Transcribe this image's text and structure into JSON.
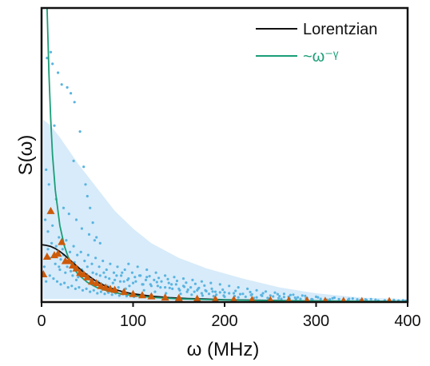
{
  "chart_data": {
    "type": "scatter",
    "title": "",
    "xlabel": "ω (MHz)",
    "ylabel": "S(ω)",
    "xlim": [
      0,
      400
    ],
    "ylim": [
      0,
      1
    ],
    "xticks": [
      0,
      100,
      200,
      300,
      400
    ],
    "yticks_labeled": false,
    "grid": false,
    "legend": {
      "placement": "top-right",
      "entries": [
        "Lorentzian",
        "~ω⁻ᵞ"
      ]
    },
    "colors": {
      "lorentzian": "#111111",
      "power_law": "#1a9e77",
      "band": "#d7ebfa",
      "samples": "#5ab4e0",
      "measured": "#cc5a0a"
    },
    "band": {
      "x": [
        2,
        10,
        20,
        40,
        60,
        80,
        100,
        120,
        150,
        180,
        220,
        260,
        300,
        350,
        400
      ],
      "lower": [
        0.01,
        0.01,
        0.01,
        0.01,
        0.01,
        0.01,
        0.008,
        0.006,
        0.005,
        0.004,
        0.003,
        0.002,
        0.002,
        0.001,
        0.001
      ],
      "upper": [
        0.62,
        0.6,
        0.56,
        0.47,
        0.39,
        0.31,
        0.25,
        0.2,
        0.15,
        0.115,
        0.08,
        0.05,
        0.03,
        0.015,
        0.01
      ]
    },
    "series": [
      {
        "name": "Lorentzian",
        "kind": "line",
        "x": [
          0,
          5,
          10,
          15,
          20,
          25,
          30,
          35,
          40,
          45,
          50,
          55,
          60,
          70,
          80,
          90,
          100,
          120,
          140,
          160,
          180,
          200,
          240,
          280,
          320,
          360,
          400
        ],
        "y": [
          0.195,
          0.193,
          0.189,
          0.182,
          0.172,
          0.16,
          0.146,
          0.132,
          0.118,
          0.104,
          0.092,
          0.081,
          0.07,
          0.054,
          0.043,
          0.034,
          0.028,
          0.02,
          0.015,
          0.012,
          0.01,
          0.008,
          0.006,
          0.004,
          0.003,
          0.002,
          0.002
        ]
      },
      {
        "name": "~ω⁻ᵞ",
        "kind": "line",
        "x": [
          6,
          8,
          10,
          12,
          15,
          20,
          25,
          30,
          35,
          40,
          50,
          60,
          70,
          80,
          100,
          120,
          150,
          200,
          250,
          300,
          350,
          400
        ],
        "y": [
          1.0,
          0.78,
          0.62,
          0.5,
          0.38,
          0.26,
          0.19,
          0.145,
          0.115,
          0.094,
          0.067,
          0.05,
          0.04,
          0.032,
          0.022,
          0.016,
          0.011,
          0.007,
          0.005,
          0.004,
          0.003,
          0.002
        ]
      },
      {
        "kind": "measured",
        "marker": "triangle",
        "x": [
          2,
          6,
          10,
          14,
          18,
          22,
          26,
          30,
          34,
          38,
          42,
          46,
          50,
          55,
          60,
          65,
          70,
          75,
          80,
          90,
          100,
          110,
          120,
          135,
          150,
          170,
          190,
          210,
          230,
          250,
          270,
          290,
          310,
          330,
          350,
          380
        ],
        "y": [
          0.095,
          0.155,
          0.31,
          0.16,
          0.165,
          0.205,
          0.14,
          0.14,
          0.125,
          0.115,
          0.1,
          0.095,
          0.085,
          0.07,
          0.065,
          0.055,
          0.05,
          0.045,
          0.042,
          0.035,
          0.028,
          0.024,
          0.02,
          0.016,
          0.014,
          0.012,
          0.01,
          0.009,
          0.008,
          0.007,
          0.006,
          0.006,
          0.005,
          0.005,
          0.004,
          0.004
        ]
      },
      {
        "kind": "samples",
        "marker": "dot",
        "points": [
          [
            6,
            0.83
          ],
          [
            10,
            0.85
          ],
          [
            12,
            0.81
          ],
          [
            18,
            0.78
          ],
          [
            22,
            0.74
          ],
          [
            28,
            0.73
          ],
          [
            32,
            0.71
          ],
          [
            36,
            0.68
          ],
          [
            42,
            0.58
          ],
          [
            14,
            0.6
          ],
          [
            35,
            0.48
          ],
          [
            46,
            0.46
          ],
          [
            48,
            0.4
          ],
          [
            50,
            0.36
          ],
          [
            53,
            0.32
          ],
          [
            56,
            0.27
          ],
          [
            60,
            0.22
          ],
          [
            5,
            0.45
          ],
          [
            8,
            0.4
          ],
          [
            16,
            0.35
          ],
          [
            24,
            0.32
          ],
          [
            30,
            0.3
          ],
          [
            38,
            0.28
          ],
          [
            44,
            0.25
          ],
          [
            52,
            0.23
          ],
          [
            58,
            0.21
          ],
          [
            64,
            0.2
          ],
          [
            4,
            0.28
          ],
          [
            7,
            0.24
          ],
          [
            11,
            0.2
          ],
          [
            19,
            0.22
          ],
          [
            23,
            0.18
          ],
          [
            27,
            0.21
          ],
          [
            31,
            0.17
          ],
          [
            35,
            0.19
          ],
          [
            39,
            0.16
          ],
          [
            43,
            0.17
          ],
          [
            47,
            0.14
          ],
          [
            51,
            0.16
          ],
          [
            55,
            0.13
          ],
          [
            59,
            0.15
          ],
          [
            63,
            0.12
          ],
          [
            67,
            0.14
          ],
          [
            71,
            0.11
          ],
          [
            75,
            0.13
          ],
          [
            79,
            0.1
          ],
          [
            83,
            0.12
          ],
          [
            87,
            0.09
          ],
          [
            91,
            0.11
          ],
          [
            95,
            0.08
          ],
          [
            99,
            0.1
          ],
          [
            103,
            0.07
          ],
          [
            107,
            0.09
          ],
          [
            111,
            0.06
          ],
          [
            115,
            0.085
          ],
          [
            119,
            0.06
          ],
          [
            123,
            0.075
          ],
          [
            127,
            0.055
          ],
          [
            131,
            0.07
          ],
          [
            135,
            0.05
          ],
          [
            139,
            0.065
          ],
          [
            143,
            0.045
          ],
          [
            147,
            0.06
          ],
          [
            151,
            0.04
          ],
          [
            155,
            0.055
          ],
          [
            159,
            0.035
          ],
          [
            163,
            0.05
          ],
          [
            167,
            0.035
          ],
          [
            171,
            0.045
          ],
          [
            175,
            0.03
          ],
          [
            179,
            0.04
          ],
          [
            183,
            0.028
          ],
          [
            187,
            0.036
          ],
          [
            191,
            0.025
          ],
          [
            195,
            0.033
          ],
          [
            199,
            0.022
          ],
          [
            205,
            0.03
          ],
          [
            211,
            0.02
          ],
          [
            217,
            0.027
          ],
          [
            223,
            0.018
          ],
          [
            229,
            0.024
          ],
          [
            235,
            0.016
          ],
          [
            241,
            0.021
          ],
          [
            247,
            0.014
          ],
          [
            253,
            0.019
          ],
          [
            259,
            0.013
          ],
          [
            265,
            0.017
          ],
          [
            271,
            0.012
          ],
          [
            277,
            0.015
          ],
          [
            283,
            0.011
          ],
          [
            289,
            0.013
          ],
          [
            295,
            0.01
          ],
          [
            305,
            0.011
          ],
          [
            315,
            0.009
          ],
          [
            325,
            0.01
          ],
          [
            335,
            0.008
          ],
          [
            345,
            0.009
          ],
          [
            355,
            0.007
          ],
          [
            365,
            0.008
          ],
          [
            375,
            0.006
          ],
          [
            385,
            0.007
          ],
          [
            395,
            0.006
          ],
          [
            3,
            0.12
          ],
          [
            9,
            0.09
          ],
          [
            13,
            0.08
          ],
          [
            17,
            0.07
          ],
          [
            21,
            0.06
          ],
          [
            25,
            0.065
          ],
          [
            29,
            0.05
          ],
          [
            33,
            0.055
          ],
          [
            37,
            0.045
          ],
          [
            41,
            0.05
          ],
          [
            45,
            0.04
          ],
          [
            49,
            0.045
          ],
          [
            53,
            0.035
          ],
          [
            57,
            0.04
          ],
          [
            61,
            0.03
          ],
          [
            65,
            0.035
          ],
          [
            69,
            0.028
          ],
          [
            73,
            0.032
          ],
          [
            77,
            0.025
          ],
          [
            81,
            0.03
          ],
          [
            85,
            0.022
          ],
          [
            89,
            0.027
          ],
          [
            93,
            0.02
          ],
          [
            97,
            0.024
          ],
          [
            101,
            0.018
          ],
          [
            105,
            0.022
          ],
          [
            60,
            0.095
          ],
          [
            70,
            0.085
          ],
          [
            80,
            0.075
          ],
          [
            90,
            0.07
          ],
          [
            100,
            0.065
          ],
          [
            110,
            0.06
          ],
          [
            120,
            0.055
          ],
          [
            130,
            0.05
          ],
          [
            140,
            0.048
          ],
          [
            150,
            0.045
          ],
          [
            160,
            0.042
          ],
          [
            170,
            0.04
          ],
          [
            180,
            0.037
          ],
          [
            190,
            0.035
          ],
          [
            200,
            0.033
          ],
          [
            210,
            0.03
          ],
          [
            220,
            0.028
          ],
          [
            230,
            0.026
          ],
          [
            240,
            0.024
          ],
          [
            250,
            0.022
          ],
          [
            260,
            0.02
          ],
          [
            270,
            0.018
          ],
          [
            280,
            0.016
          ],
          [
            290,
            0.014
          ],
          [
            95,
            0.13
          ],
          [
            105,
            0.12
          ],
          [
            115,
            0.11
          ],
          [
            125,
            0.1
          ],
          [
            135,
            0.09
          ],
          [
            145,
            0.085
          ],
          [
            155,
            0.08
          ],
          [
            165,
            0.075
          ],
          [
            175,
            0.07
          ],
          [
            185,
            0.065
          ],
          [
            195,
            0.06
          ],
          [
            205,
            0.055
          ],
          [
            215,
            0.05
          ],
          [
            225,
            0.045
          ],
          [
            235,
            0.04
          ],
          [
            245,
            0.036
          ],
          [
            255,
            0.032
          ],
          [
            265,
            0.028
          ],
          [
            275,
            0.025
          ],
          [
            285,
            0.022
          ],
          [
            300,
            0.018
          ],
          [
            320,
            0.015
          ],
          [
            340,
            0.012
          ],
          [
            360,
            0.01
          ],
          [
            108,
            0.09
          ],
          [
            118,
            0.088
          ],
          [
            128,
            0.082
          ],
          [
            138,
            0.078
          ],
          [
            148,
            0.072
          ],
          [
            158,
            0.066
          ],
          [
            168,
            0.062
          ],
          [
            178,
            0.056
          ],
          [
            15,
            0.13
          ],
          [
            20,
            0.11
          ],
          [
            26,
            0.1
          ],
          [
            34,
            0.09
          ],
          [
            40,
            0.085
          ],
          [
            54,
            0.075
          ],
          [
            62,
            0.07
          ],
          [
            66,
            0.06
          ],
          [
            72,
            0.055
          ],
          [
            84,
            0.05
          ],
          [
            92,
            0.045
          ],
          [
            112,
            0.04
          ],
          [
            124,
            0.035
          ],
          [
            136,
            0.03
          ],
          [
            152,
            0.028
          ],
          [
            164,
            0.025
          ],
          [
            176,
            0.022
          ],
          [
            188,
            0.02
          ],
          [
            200,
            0.018
          ],
          [
            215,
            0.016
          ],
          [
            232,
            0.014
          ],
          [
            248,
            0.012
          ],
          [
            262,
            0.011
          ],
          [
            278,
            0.01
          ],
          [
            296,
            0.009
          ],
          [
            312,
            0.008
          ],
          [
            330,
            0.007
          ],
          [
            348,
            0.006
          ],
          [
            368,
            0.005
          ],
          [
            390,
            0.005
          ],
          [
            398,
            0.004
          ],
          [
            5,
            0.07
          ],
          [
            7,
            0.18
          ],
          [
            9,
            0.15
          ],
          [
            12,
            0.26
          ],
          [
            16,
            0.19
          ],
          [
            19,
            0.12
          ],
          [
            21,
            0.145
          ],
          [
            24,
            0.16
          ],
          [
            28,
            0.12
          ],
          [
            32,
            0.105
          ],
          [
            36,
            0.135
          ],
          [
            38,
            0.075
          ],
          [
            44,
            0.11
          ],
          [
            46,
            0.09
          ],
          [
            50,
            0.12
          ],
          [
            56,
            0.1
          ],
          [
            58,
            0.06
          ],
          [
            64,
            0.09
          ],
          [
            68,
            0.1
          ],
          [
            74,
            0.08
          ],
          [
            78,
            0.065
          ],
          [
            82,
            0.09
          ],
          [
            86,
            0.07
          ],
          [
            88,
            0.1
          ],
          [
            94,
            0.075
          ],
          [
            96,
            0.055
          ],
          [
            102,
            0.085
          ],
          [
            114,
            0.075
          ],
          [
            126,
            0.068
          ],
          [
            142,
            0.06
          ],
          [
            156,
            0.052
          ],
          [
            172,
            0.048
          ],
          [
            186,
            0.045
          ],
          [
            198,
            0.042
          ],
          [
            212,
            0.038
          ],
          [
            228,
            0.034
          ],
          [
            242,
            0.03
          ],
          [
            258,
            0.027
          ],
          [
            272,
            0.024
          ],
          [
            288,
            0.021
          ],
          [
            302,
            0.016
          ],
          [
            318,
            0.013
          ],
          [
            336,
            0.011
          ],
          [
            354,
            0.009
          ]
        ]
      }
    ]
  }
}
